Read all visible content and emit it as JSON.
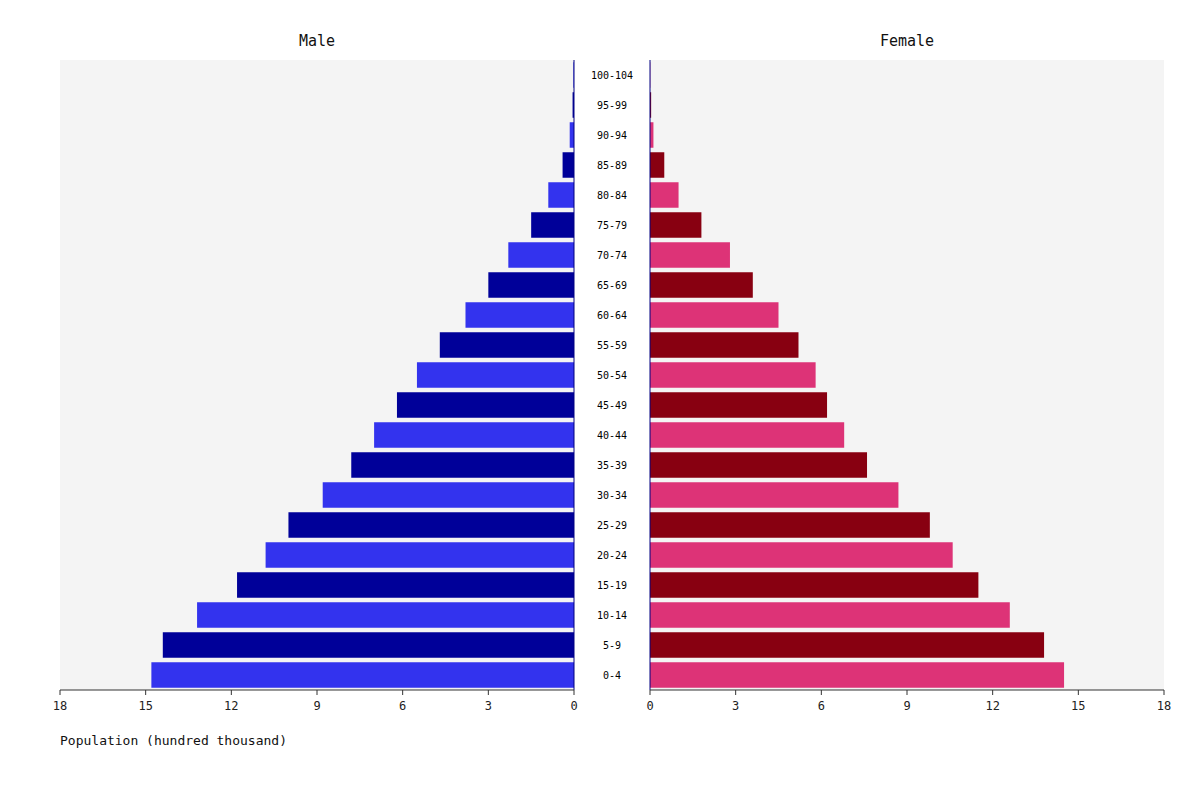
{
  "chart_data": {
    "type": "bar",
    "orientation": "horizontal",
    "categories": [
      "0-4",
      "5-9",
      "10-14",
      "15-19",
      "20-24",
      "25-29",
      "30-34",
      "35-39",
      "40-44",
      "45-49",
      "50-54",
      "55-59",
      "60-64",
      "65-69",
      "70-74",
      "75-79",
      "80-84",
      "85-89",
      "90-94",
      "95-99",
      "100-104"
    ],
    "series": [
      {
        "name": "Male",
        "values": [
          14.8,
          14.4,
          13.2,
          11.8,
          10.8,
          10.0,
          8.8,
          7.8,
          7.0,
          6.2,
          5.5,
          4.7,
          3.8,
          3.0,
          2.3,
          1.5,
          0.9,
          0.4,
          0.15,
          0.05,
          0.02
        ],
        "colors": [
          "#3333ee",
          "#000099",
          "#3333ee",
          "#000099",
          "#3333ee",
          "#000099",
          "#3333ee",
          "#000099",
          "#3333ee",
          "#000099",
          "#3333ee",
          "#000099",
          "#3333ee",
          "#000099",
          "#3333ee",
          "#000099",
          "#3333ee",
          "#000099",
          "#3333ee",
          "#000099",
          "#3333ee"
        ]
      },
      {
        "name": "Female",
        "values": [
          14.5,
          13.8,
          12.6,
          11.5,
          10.6,
          9.8,
          8.7,
          7.6,
          6.8,
          6.2,
          5.8,
          5.2,
          4.5,
          3.6,
          2.8,
          1.8,
          1.0,
          0.5,
          0.12,
          0.04,
          0.01
        ],
        "colors": [
          "#dd3377",
          "#880011",
          "#dd3377",
          "#880011",
          "#dd3377",
          "#880011",
          "#dd3377",
          "#880011",
          "#dd3377",
          "#880011",
          "#dd3377",
          "#880011",
          "#dd3377",
          "#880011",
          "#dd3377",
          "#880011",
          "#dd3377",
          "#880011",
          "#dd3377",
          "#880011",
          "#dd3377"
        ]
      }
    ],
    "xlim": [
      0,
      18
    ],
    "xticks": [
      0,
      3,
      6,
      9,
      12,
      15,
      18
    ],
    "xlabel": "Population (hundred thousand)",
    "grid": false
  }
}
